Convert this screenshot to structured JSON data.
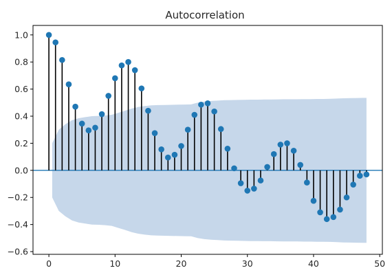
{
  "chart_data": {
    "type": "stem",
    "title": "Autocorrelation",
    "xlabel": "",
    "ylabel": "",
    "xlim": [
      -2.4,
      50.4
    ],
    "ylim": [
      -0.62,
      1.07
    ],
    "xticks": [
      0,
      10,
      20,
      30,
      40,
      50
    ],
    "xtick_labels": [
      "0",
      "10",
      "20",
      "30",
      "40",
      "50"
    ],
    "yticks": [
      -0.6,
      -0.4,
      -0.2,
      0.0,
      0.2,
      0.4,
      0.6,
      0.8,
      1.0
    ],
    "ytick_labels": [
      "−0.6",
      "−0.4",
      "−0.2",
      "0.0",
      "0.2",
      "0.4",
      "0.6",
      "0.8",
      "1.0"
    ],
    "lags": [
      0,
      1,
      2,
      3,
      4,
      5,
      6,
      7,
      8,
      9,
      10,
      11,
      12,
      13,
      14,
      15,
      16,
      17,
      18,
      19,
      20,
      21,
      22,
      23,
      24,
      25,
      26,
      27,
      28,
      29,
      30,
      31,
      32,
      33,
      34,
      35,
      36,
      37,
      38,
      39,
      40,
      41,
      42,
      43,
      44,
      45,
      46,
      47,
      48
    ],
    "acf": [
      1.0,
      0.945,
      0.815,
      0.635,
      0.47,
      0.345,
      0.295,
      0.315,
      0.415,
      0.55,
      0.68,
      0.775,
      0.8,
      0.74,
      0.605,
      0.44,
      0.275,
      0.155,
      0.095,
      0.115,
      0.18,
      0.3,
      0.41,
      0.485,
      0.495,
      0.435,
      0.305,
      0.16,
      0.015,
      -0.095,
      -0.15,
      -0.135,
      -0.075,
      0.025,
      0.12,
      0.19,
      0.2,
      0.145,
      0.04,
      -0.09,
      -0.225,
      -0.31,
      -0.36,
      -0.345,
      -0.29,
      -0.2,
      -0.105,
      -0.04,
      -0.03
    ],
    "confint_upper": [
      0.0,
      0.2,
      0.3,
      0.34,
      0.37,
      0.385,
      0.393,
      0.4,
      0.402,
      0.405,
      0.41,
      0.425,
      0.44,
      0.456,
      0.468,
      0.475,
      0.48,
      0.482,
      0.483,
      0.484,
      0.485,
      0.486,
      0.487,
      0.5,
      0.508,
      0.512,
      0.515,
      0.518,
      0.519,
      0.52,
      0.521,
      0.522,
      0.522,
      0.523,
      0.523,
      0.524,
      0.525,
      0.525,
      0.525,
      0.526,
      0.526,
      0.527,
      0.527,
      0.528,
      0.53,
      0.532,
      0.533,
      0.534,
      0.535
    ],
    "colors": {
      "marker": "#1f77b4",
      "stem": "#000000",
      "confint_fill": "#c6d7ea",
      "zero_line": "#1f77b4",
      "axes": "#000000",
      "text": "#262626"
    }
  }
}
